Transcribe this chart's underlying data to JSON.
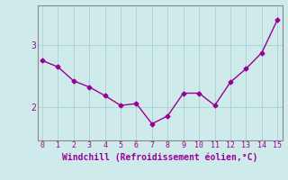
{
  "x": [
    0,
    1,
    2,
    3,
    4,
    5,
    6,
    7,
    8,
    9,
    10,
    11,
    12,
    13,
    14,
    15
  ],
  "y": [
    2.75,
    2.65,
    2.42,
    2.32,
    2.18,
    2.02,
    2.05,
    1.72,
    1.85,
    2.22,
    2.22,
    2.02,
    2.4,
    2.62,
    2.88,
    3.42
  ],
  "xlabel": "Windchill (Refroidissement éolien,°C)",
  "yticks": [
    2,
    3
  ],
  "ytick_labels": [
    "2",
    "3"
  ],
  "xticks": [
    0,
    1,
    2,
    3,
    4,
    5,
    6,
    7,
    8,
    9,
    10,
    11,
    12,
    13,
    14,
    15
  ],
  "xlim": [
    -0.3,
    15.3
  ],
  "ylim": [
    1.45,
    3.65
  ],
  "line_color": "#990099",
  "marker": "D",
  "marker_size": 2.5,
  "linewidth": 1.0,
  "bg_color": "#ceeaea",
  "grid_color": "#aed4d4",
  "xlabel_color": "#990099",
  "xlabel_fontsize": 7,
  "tick_fontsize": 6,
  "ytick_fontsize": 7
}
